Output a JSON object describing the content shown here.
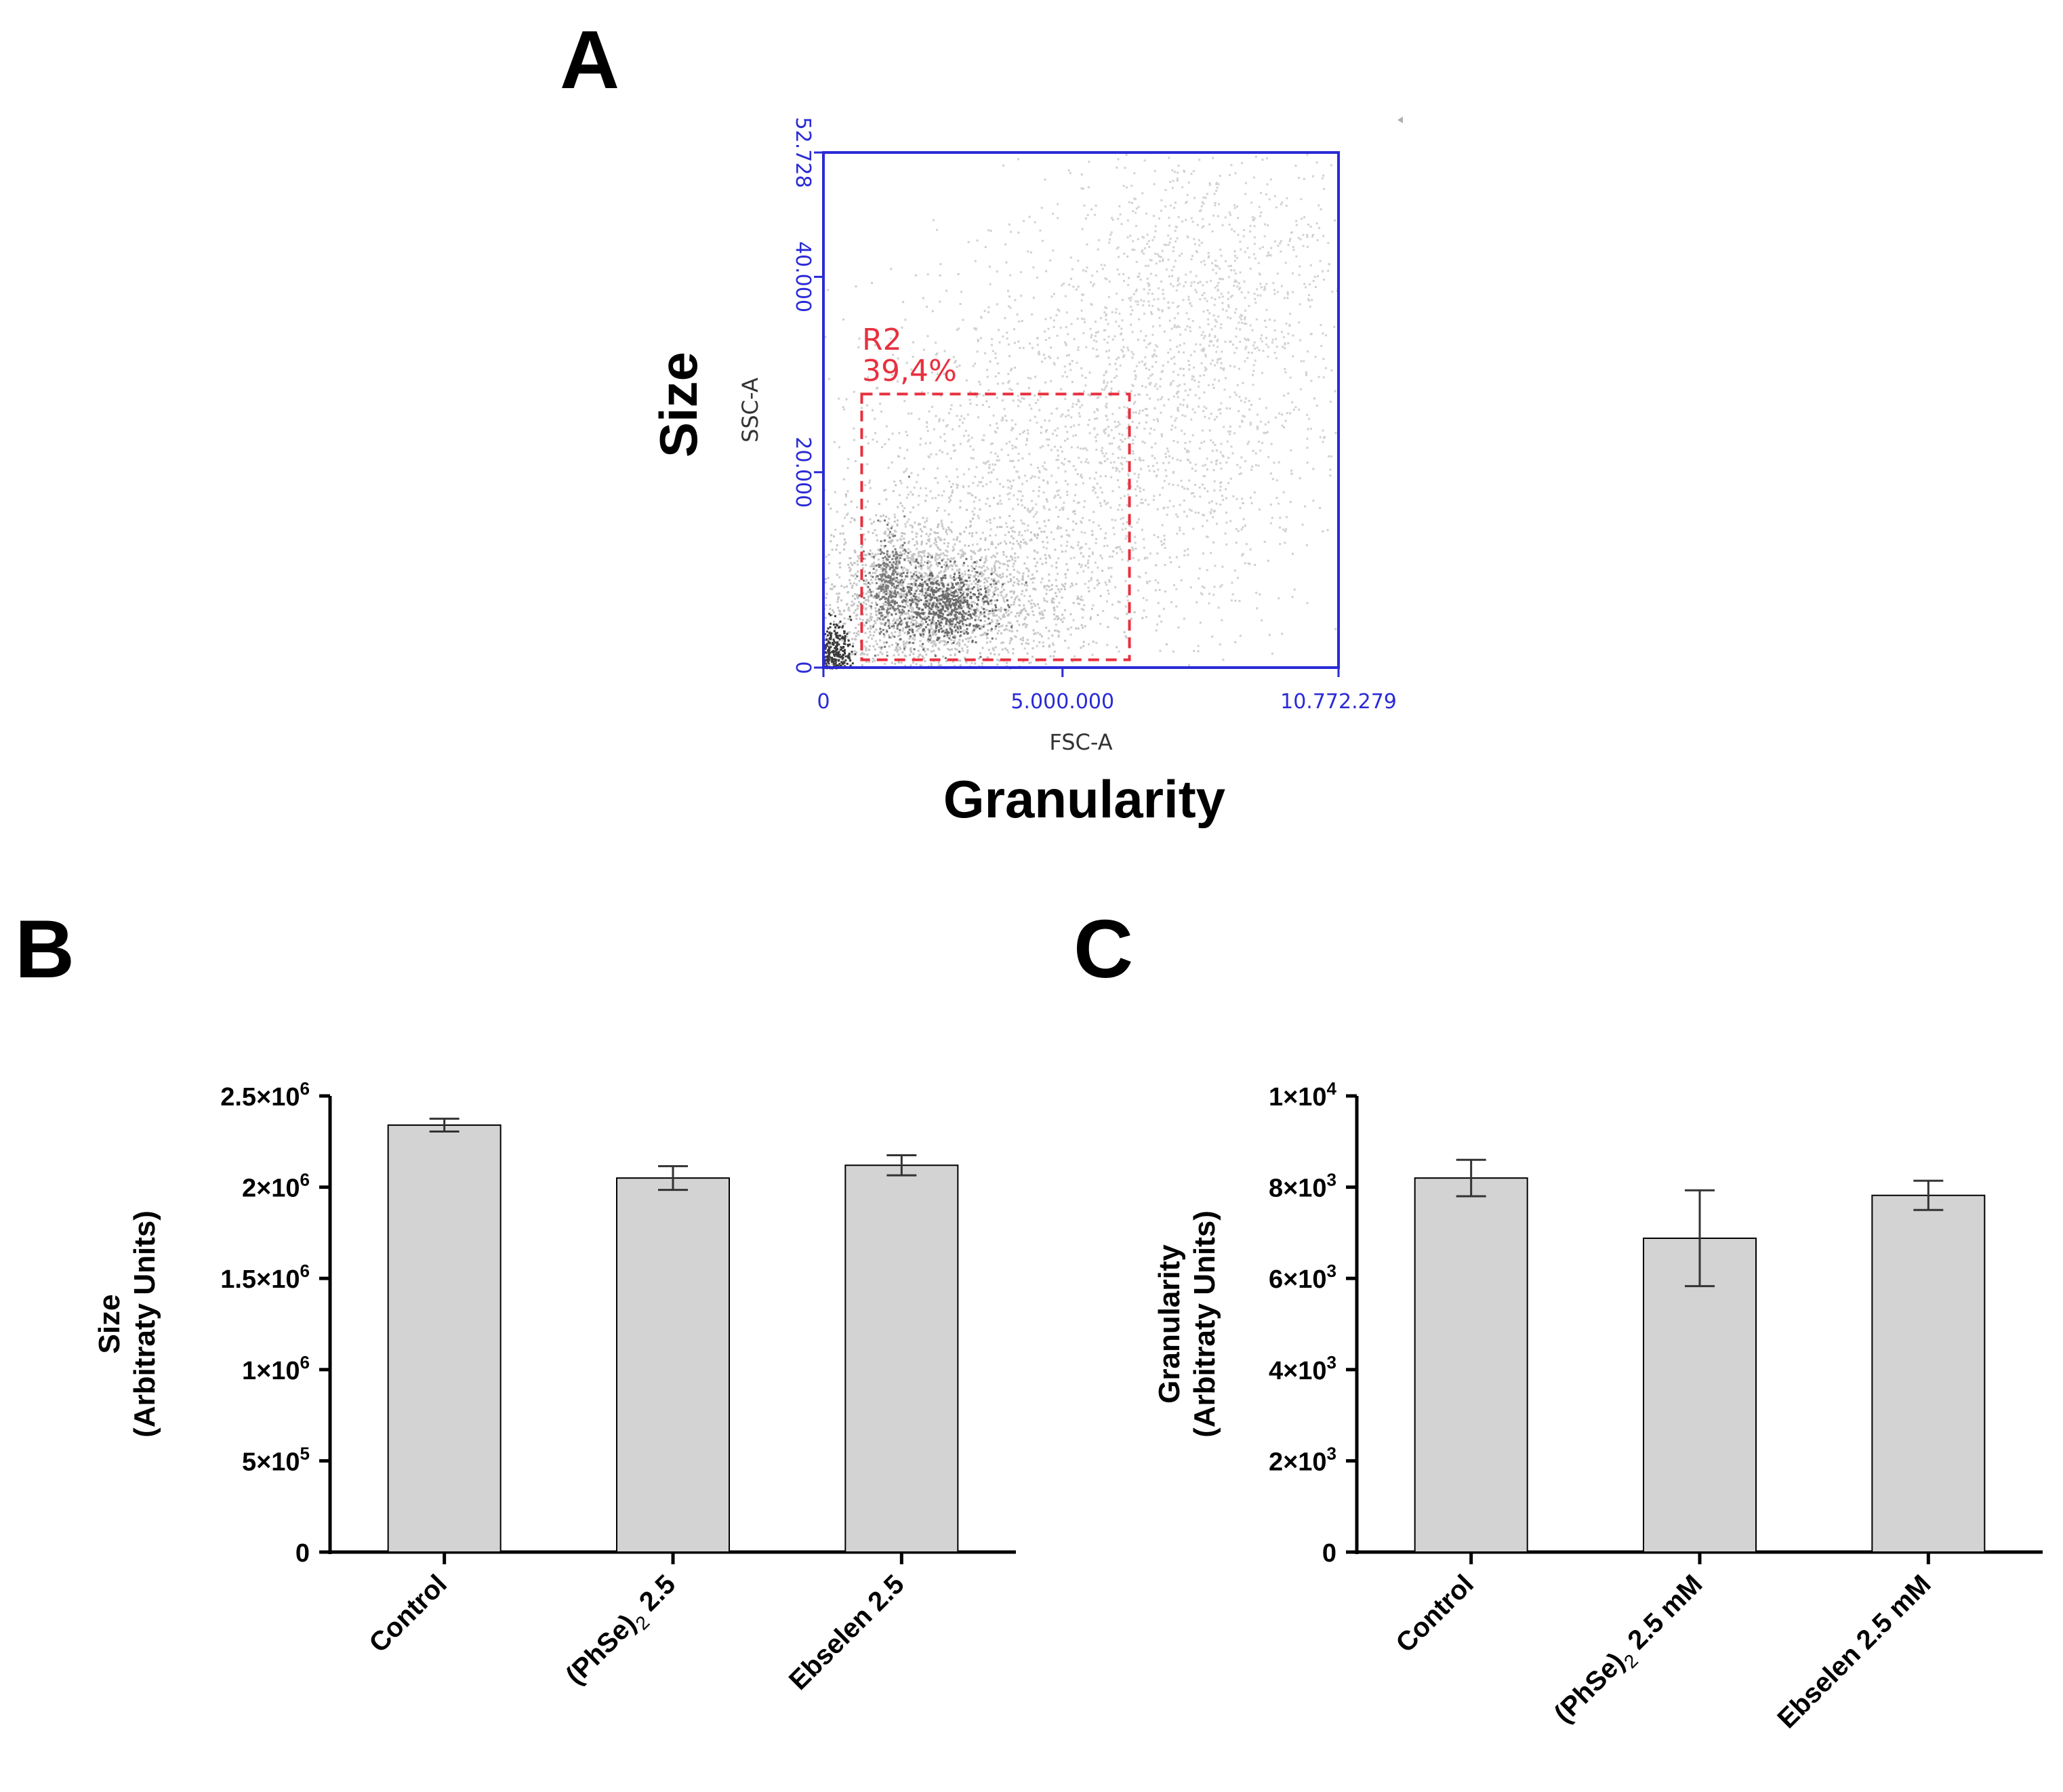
{
  "panels": {
    "a": "A",
    "b": "B",
    "c": "C"
  },
  "chart_data": [
    {
      "type": "scatter",
      "panel": "A",
      "outer_xlabel": "Granularity",
      "outer_ylabel": "Size",
      "xlabel": "FSC-A",
      "ylabel": "SSC-A",
      "xlim": [
        0,
        10772279
      ],
      "ylim": [
        0,
        52728
      ],
      "x_ticks": [
        "0",
        "5.000.000",
        "10.772.279"
      ],
      "y_ticks": [
        "0",
        "20.000",
        "40.000",
        "52.728"
      ],
      "gate": {
        "name": "R2",
        "percent": "39,4%",
        "x_range": [
          800000,
          6400000
        ],
        "y_range": [
          800,
          28000
        ]
      },
      "colors": {
        "axis": "#2a2ad6",
        "gate": "#e8303e",
        "points": "#9a9a9a"
      },
      "clusters": [
        {
          "x": 2200000,
          "y": 7000,
          "sx": 1500000,
          "sy": 4500,
          "n": 2200,
          "shade": "#c4c4c4"
        },
        {
          "x": 5200000,
          "y": 20000,
          "sx": 2600000,
          "sy": 10000,
          "n": 1800,
          "shade": "#cfcfcf"
        },
        {
          "x": 8000000,
          "y": 38000,
          "sx": 1900000,
          "sy": 9000,
          "n": 1100,
          "shade": "#d2d2d2"
        },
        {
          "x": 2500000,
          "y": 6500,
          "sx": 520000,
          "sy": 1900,
          "n": 650,
          "shade": "#6a6a6a"
        },
        {
          "x": 1350000,
          "y": 8500,
          "sx": 220000,
          "sy": 2600,
          "n": 300,
          "shade": "#7a7a7a"
        },
        {
          "x": 150000,
          "y": 1500,
          "sx": 200000,
          "sy": 1600,
          "n": 380,
          "shade": "#3a3a3a"
        }
      ]
    },
    {
      "type": "bar",
      "panel": "B",
      "categories": [
        "Control",
        "(PhSe)",
        "Ebselen 2.5"
      ],
      "category_suffix": [
        "",
        "2.5",
        ""
      ],
      "category_subscript": [
        "",
        "2",
        ""
      ],
      "values": [
        2340000,
        2050000,
        2120000
      ],
      "errors": [
        35000,
        65000,
        55000
      ],
      "ylim": [
        0,
        2500000
      ],
      "yticks": [
        0,
        500000,
        1000000,
        1500000,
        2000000,
        2500000
      ],
      "ytick_base": [
        "0",
        "5×10",
        "1×10",
        "1.5×10",
        "2×10",
        "2.5×10"
      ],
      "ytick_exp": [
        "",
        "5",
        "6",
        "6",
        "6",
        "6"
      ],
      "ylabel_line1": "Size",
      "ylabel_line2": "(Arbitraty Units)",
      "colors": {
        "bar": "#d3d3d3"
      }
    },
    {
      "type": "bar",
      "panel": "C",
      "categories": [
        "Control",
        "(PhSe)",
        "Ebselen 2.5 mM"
      ],
      "category_suffix": [
        "",
        "2.5 mM",
        ""
      ],
      "category_subscript": [
        "",
        "2",
        ""
      ],
      "values": [
        8200,
        6880,
        7820
      ],
      "errors": [
        400,
        1050,
        320
      ],
      "ylim": [
        0,
        10000
      ],
      "yticks": [
        0,
        2000,
        4000,
        6000,
        8000,
        10000
      ],
      "ytick_base": [
        "0",
        "2×10",
        "4×10",
        "6×10",
        "8×10",
        "1×10"
      ],
      "ytick_exp": [
        "",
        "3",
        "3",
        "3",
        "3",
        "4"
      ],
      "ylabel_line1": "Granularity",
      "ylabel_line2": "(Arbitraty Units)",
      "colors": {
        "bar": "#d3d3d3"
      }
    }
  ]
}
